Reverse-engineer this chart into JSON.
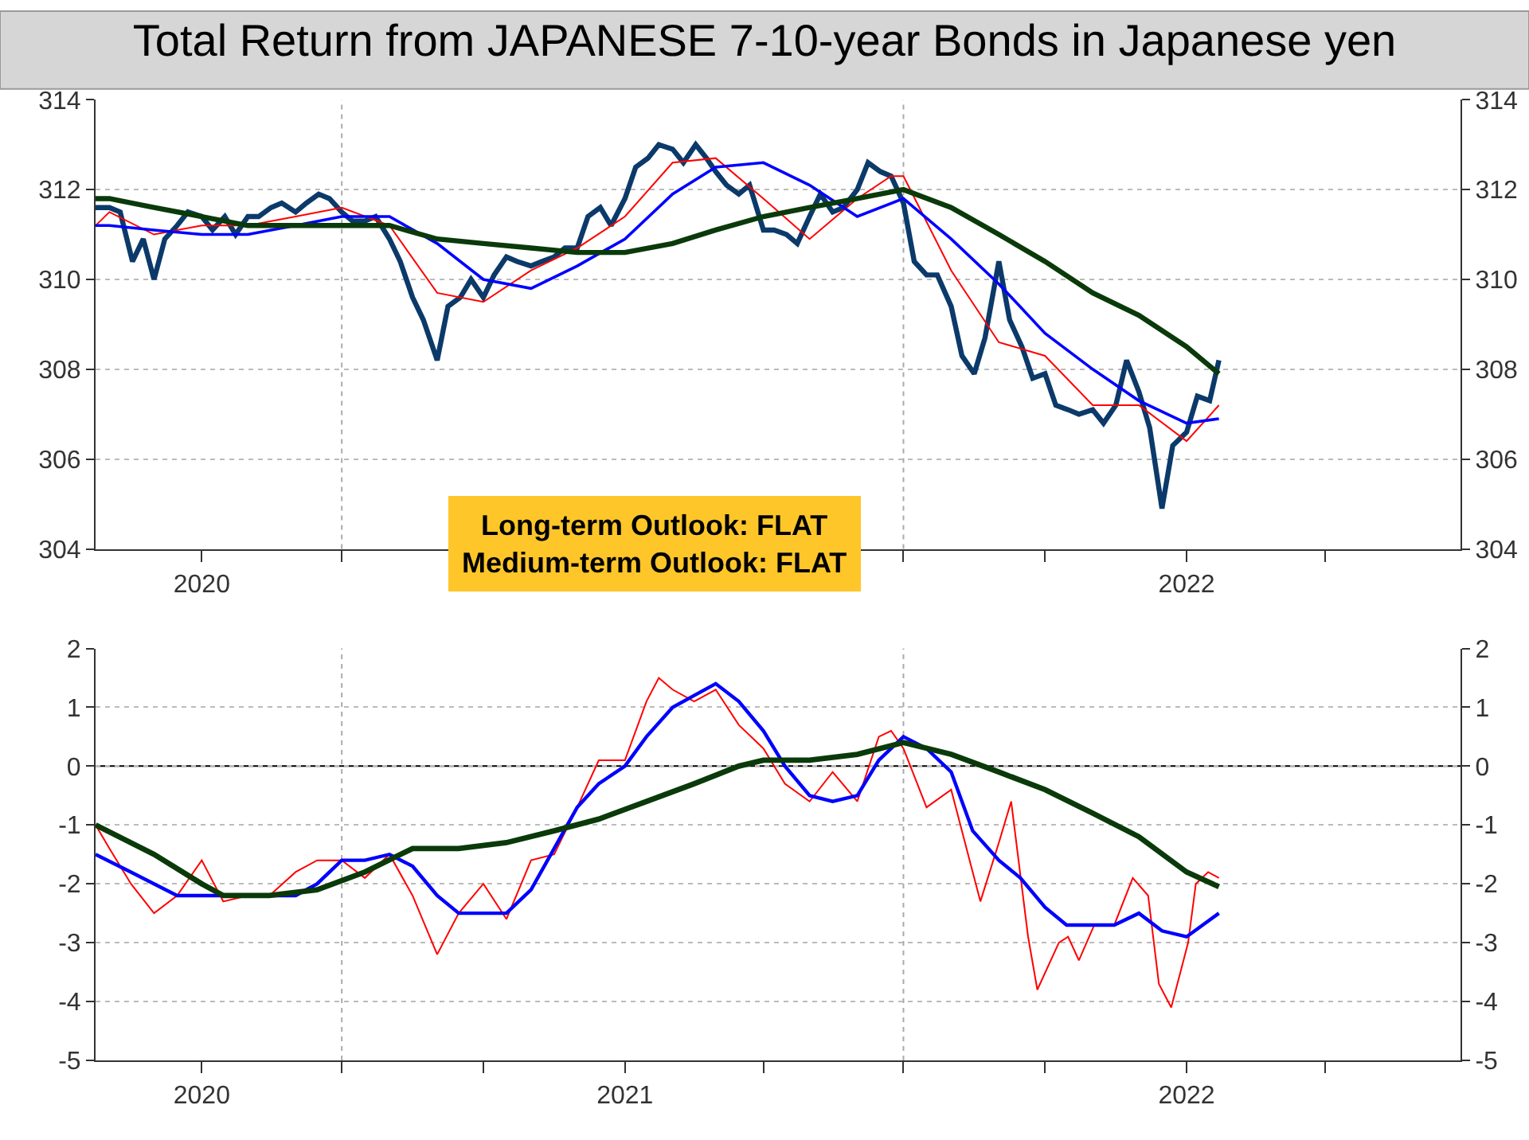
{
  "chart_data": [
    {
      "type": "line",
      "title": "Total Return from JAPANESE 7-10-year Bonds in Japanese yen",
      "annotations": [
        "Long-term Outlook: FLAT\nMedium-term Outlook: FLAT"
      ],
      "xlim": [
        "2020-01-23",
        "2022-06-28"
      ],
      "xticks": [
        {
          "value": "2020-04-01",
          "label": "2020"
        },
        {
          "value": "2020-07-01",
          "label": null
        },
        {
          "value": "2020-10-01",
          "label": null
        },
        {
          "value": "2021-01-01",
          "label": null
        },
        {
          "value": "2021-04-01",
          "label": null
        },
        {
          "value": "2021-07-01",
          "label": null
        },
        {
          "value": "2021-10-01",
          "label": null
        },
        {
          "value": "2022-01-01",
          "label": "2022"
        },
        {
          "value": "2022-04-01",
          "label": null
        }
      ],
      "ylim": [
        304,
        314
      ],
      "yticks": [
        304,
        306,
        308,
        310,
        312,
        314
      ],
      "y2lim": [
        304,
        314
      ],
      "y2ticks": [
        304,
        306,
        308,
        310,
        312,
        314
      ],
      "grid": "y",
      "ref_lines": [
        {
          "axis": "x",
          "value": "2020-07-01",
          "color": "#aaaaaa",
          "line_style": "dotted"
        },
        {
          "axis": "x",
          "value": "2021-07-01",
          "color": "#aaaaaa",
          "line_style": "dotted"
        }
      ],
      "series": [
        {
          "color": "#0b3a6a",
          "x": [
            "2020-01-23",
            "2020-02-01",
            "2020-02-08",
            "2020-02-16",
            "2020-02-23",
            "2020-03-01",
            "2020-03-08",
            "2020-03-16",
            "2020-03-23",
            "2020-04-01",
            "2020-04-08",
            "2020-04-16",
            "2020-04-23",
            "2020-05-01",
            "2020-05-08",
            "2020-05-16",
            "2020-05-23",
            "2020-06-01",
            "2020-06-08",
            "2020-06-16",
            "2020-06-23",
            "2020-07-01",
            "2020-07-08",
            "2020-07-16",
            "2020-07-23",
            "2020-08-01",
            "2020-08-08",
            "2020-08-16",
            "2020-08-23",
            "2020-09-01",
            "2020-09-08",
            "2020-09-16",
            "2020-09-23",
            "2020-10-01",
            "2020-10-08",
            "2020-10-16",
            "2020-10-23",
            "2020-11-01",
            "2020-11-08",
            "2020-11-16",
            "2020-11-23",
            "2020-12-01",
            "2020-12-08",
            "2020-12-16",
            "2020-12-23",
            "2021-01-01",
            "2021-01-08",
            "2021-01-16",
            "2021-01-23",
            "2021-02-01",
            "2021-02-08",
            "2021-02-16",
            "2021-02-23",
            "2021-03-01",
            "2021-03-08",
            "2021-03-16",
            "2021-03-23",
            "2021-04-01",
            "2021-04-08",
            "2021-04-16",
            "2021-04-23",
            "2021-05-01",
            "2021-05-08",
            "2021-05-16",
            "2021-05-23",
            "2021-06-01",
            "2021-06-08",
            "2021-06-16",
            "2021-06-23",
            "2021-07-01",
            "2021-07-08",
            "2021-07-16",
            "2021-07-23",
            "2021-08-01",
            "2021-08-08",
            "2021-08-16",
            "2021-08-23",
            "2021-09-01",
            "2021-09-08",
            "2021-09-16",
            "2021-09-23",
            "2021-10-01",
            "2021-10-08",
            "2021-10-16",
            "2021-10-23",
            "2021-11-01",
            "2021-11-08",
            "2021-11-16",
            "2021-11-23",
            "2021-12-01",
            "2021-12-08",
            "2021-12-16",
            "2021-12-23",
            "2022-01-01",
            "2022-01-08",
            "2022-01-16",
            "2022-01-22"
          ],
          "values": [
            311.6,
            311.6,
            311.5,
            310.4,
            310.9,
            310.0,
            310.9,
            311.2,
            311.5,
            311.4,
            311.1,
            311.4,
            311.0,
            311.4,
            311.4,
            311.6,
            311.7,
            311.5,
            311.7,
            311.9,
            311.8,
            311.5,
            311.3,
            311.3,
            311.4,
            310.9,
            310.4,
            309.6,
            309.1,
            308.2,
            309.4,
            309.6,
            310.0,
            309.6,
            310.1,
            310.5,
            310.4,
            310.3,
            310.4,
            310.5,
            310.7,
            310.7,
            311.4,
            311.6,
            311.2,
            311.8,
            312.5,
            312.7,
            313.0,
            312.9,
            312.6,
            313.0,
            312.7,
            312.4,
            312.1,
            311.9,
            312.1,
            311.1,
            311.1,
            311.0,
            310.8,
            311.4,
            311.9,
            311.5,
            311.6,
            312.0,
            312.6,
            312.4,
            312.3,
            311.7,
            310.4,
            310.1,
            310.1,
            309.4,
            308.3,
            307.9,
            308.7,
            310.4,
            309.1,
            308.5,
            307.8,
            307.9,
            307.2,
            307.1,
            307.0,
            307.1,
            306.8,
            307.2,
            308.2,
            307.5,
            306.7,
            304.9,
            306.3,
            306.6,
            307.4,
            307.3,
            308.2
          ]
        },
        {
          "color": "#ff0000",
          "x": [
            "2020-01-23",
            "2020-02-01",
            "2020-03-01",
            "2020-04-01",
            "2020-05-01",
            "2020-06-01",
            "2020-07-01",
            "2020-08-01",
            "2020-09-01",
            "2020-10-01",
            "2020-11-01",
            "2020-12-01",
            "2021-01-01",
            "2021-02-01",
            "2021-03-01",
            "2021-04-01",
            "2021-05-01",
            "2021-06-01",
            "2021-06-23",
            "2021-07-01",
            "2021-08-01",
            "2021-09-01",
            "2021-10-01",
            "2021-11-01",
            "2021-12-01",
            "2022-01-01",
            "2022-01-22"
          ],
          "values": [
            311.2,
            311.5,
            311.0,
            311.2,
            311.2,
            311.4,
            311.6,
            311.2,
            309.7,
            309.5,
            310.2,
            310.7,
            311.4,
            312.6,
            312.7,
            311.8,
            310.9,
            311.8,
            312.3,
            312.3,
            310.2,
            308.6,
            308.3,
            307.2,
            307.2,
            306.4,
            307.2
          ]
        },
        {
          "color": "#0000ff",
          "x": [
            "2020-01-23",
            "2020-02-01",
            "2020-03-01",
            "2020-04-01",
            "2020-05-01",
            "2020-06-01",
            "2020-07-01",
            "2020-08-01",
            "2020-09-01",
            "2020-10-01",
            "2020-11-01",
            "2020-12-01",
            "2021-01-01",
            "2021-02-01",
            "2021-03-01",
            "2021-04-01",
            "2021-05-01",
            "2021-06-01",
            "2021-07-01",
            "2021-08-01",
            "2021-09-01",
            "2021-10-01",
            "2021-11-01",
            "2021-12-01",
            "2022-01-01",
            "2022-01-22"
          ],
          "values": [
            311.2,
            311.2,
            311.1,
            311.0,
            311.0,
            311.2,
            311.4,
            311.4,
            310.8,
            310.0,
            309.8,
            310.3,
            310.9,
            311.9,
            312.5,
            312.6,
            312.1,
            311.4,
            311.8,
            310.9,
            309.9,
            308.8,
            308.0,
            307.3,
            306.8,
            306.9
          ]
        },
        {
          "color": "#0a3a0a",
          "x": [
            "2020-01-23",
            "2020-02-01",
            "2020-03-01",
            "2020-04-01",
            "2020-05-01",
            "2020-06-01",
            "2020-07-01",
            "2020-08-01",
            "2020-09-01",
            "2020-10-01",
            "2020-11-01",
            "2020-12-01",
            "2021-01-01",
            "2021-02-01",
            "2021-03-01",
            "2021-04-01",
            "2021-05-01",
            "2021-06-01",
            "2021-07-01",
            "2021-08-01",
            "2021-09-01",
            "2021-10-01",
            "2021-11-01",
            "2021-12-01",
            "2022-01-01",
            "2022-01-22"
          ],
          "values": [
            311.8,
            311.8,
            311.6,
            311.4,
            311.2,
            311.2,
            311.2,
            311.2,
            310.9,
            310.8,
            310.7,
            310.6,
            310.6,
            310.8,
            311.1,
            311.4,
            311.6,
            311.8,
            312.0,
            311.6,
            311.0,
            310.4,
            309.7,
            309.2,
            308.5,
            307.9
          ]
        }
      ]
    },
    {
      "type": "line",
      "xlim": [
        "2020-01-23",
        "2022-06-28"
      ],
      "xticks": [
        {
          "value": "2020-04-01",
          "label": "2020"
        },
        {
          "value": "2020-07-01",
          "label": null
        },
        {
          "value": "2020-10-01",
          "label": null
        },
        {
          "value": "2021-01-01",
          "label": "2021"
        },
        {
          "value": "2021-04-01",
          "label": null
        },
        {
          "value": "2021-07-01",
          "label": null
        },
        {
          "value": "2021-10-01",
          "label": null
        },
        {
          "value": "2022-01-01",
          "label": "2022"
        },
        {
          "value": "2022-04-01",
          "label": null
        }
      ],
      "ylim": [
        -5,
        2
      ],
      "yticks": [
        -5,
        -4,
        -3,
        -2,
        -1,
        0,
        1,
        2
      ],
      "y2lim": [
        -5,
        2
      ],
      "y2ticks": [
        -5,
        -4,
        -3,
        -2,
        -1,
        0,
        1,
        2
      ],
      "grid": "y",
      "ref_lines": [
        {
          "axis": "x",
          "value": "2020-07-01",
          "color": "#aaaaaa",
          "line_style": "dotted"
        },
        {
          "axis": "x",
          "value": "2021-07-01",
          "color": "#aaaaaa",
          "line_style": "dotted"
        },
        {
          "axis": "y",
          "value": 0,
          "color": "#000000",
          "line_style": "solid"
        }
      ],
      "series": [
        {
          "color": "#ff0000",
          "x": [
            "2020-01-23",
            "2020-02-01",
            "2020-02-15",
            "2020-03-01",
            "2020-03-16",
            "2020-04-01",
            "2020-04-15",
            "2020-05-01",
            "2020-05-15",
            "2020-06-01",
            "2020-06-15",
            "2020-07-01",
            "2020-07-16",
            "2020-08-01",
            "2020-08-16",
            "2020-09-01",
            "2020-09-15",
            "2020-10-01",
            "2020-10-16",
            "2020-11-01",
            "2020-11-16",
            "2020-12-01",
            "2020-12-15",
            "2021-01-01",
            "2021-01-15",
            "2021-01-23",
            "2021-02-01",
            "2021-02-15",
            "2021-03-01",
            "2021-03-16",
            "2021-04-01",
            "2021-04-15",
            "2021-05-01",
            "2021-05-16",
            "2021-06-01",
            "2021-06-15",
            "2021-06-23",
            "2021-07-01",
            "2021-07-16",
            "2021-08-01",
            "2021-08-15",
            "2021-08-20",
            "2021-09-01",
            "2021-09-09",
            "2021-09-20",
            "2021-09-26",
            "2021-10-10",
            "2021-10-16",
            "2021-10-23",
            "2021-11-02",
            "2021-11-15",
            "2021-11-27",
            "2021-12-07",
            "2021-12-14",
            "2021-12-22",
            "2022-01-02",
            "2022-01-07",
            "2022-01-15",
            "2022-01-22"
          ],
          "values": [
            -1.0,
            -1.4,
            -2.0,
            -2.5,
            -2.2,
            -1.6,
            -2.3,
            -2.2,
            -2.2,
            -1.8,
            -1.6,
            -1.6,
            -1.9,
            -1.5,
            -2.2,
            -3.2,
            -2.5,
            -2.0,
            -2.6,
            -1.6,
            -1.5,
            -0.7,
            0.1,
            0.1,
            1.1,
            1.5,
            1.3,
            1.1,
            1.3,
            0.7,
            0.3,
            -0.3,
            -0.6,
            -0.1,
            -0.6,
            0.5,
            0.6,
            0.3,
            -0.7,
            -0.4,
            -1.8,
            -2.3,
            -1.3,
            -0.6,
            -2.9,
            -3.8,
            -3.0,
            -2.9,
            -3.3,
            -2.7,
            -2.7,
            -1.9,
            -2.2,
            -3.7,
            -4.1,
            -3.0,
            -2.0,
            -1.8,
            -1.9
          ]
        },
        {
          "color": "#0000ff",
          "x": [
            "2020-01-23",
            "2020-02-15",
            "2020-03-01",
            "2020-03-16",
            "2020-04-01",
            "2020-05-01",
            "2020-06-01",
            "2020-06-15",
            "2020-07-01",
            "2020-07-16",
            "2020-08-01",
            "2020-08-16",
            "2020-09-01",
            "2020-09-15",
            "2020-10-01",
            "2020-10-16",
            "2020-11-01",
            "2020-11-16",
            "2020-12-01",
            "2020-12-15",
            "2021-01-01",
            "2021-01-15",
            "2021-02-01",
            "2021-02-15",
            "2021-03-01",
            "2021-03-16",
            "2021-04-01",
            "2021-04-15",
            "2021-05-01",
            "2021-05-16",
            "2021-06-01",
            "2021-06-15",
            "2021-07-01",
            "2021-07-16",
            "2021-08-01",
            "2021-08-15",
            "2021-09-01",
            "2021-09-15",
            "2021-10-01",
            "2021-10-15",
            "2021-11-01",
            "2021-11-15",
            "2021-12-01",
            "2021-12-16",
            "2022-01-01",
            "2022-01-22"
          ],
          "values": [
            -1.5,
            -1.8,
            -2.0,
            -2.2,
            -2.2,
            -2.2,
            -2.2,
            -2.0,
            -1.6,
            -1.6,
            -1.5,
            -1.7,
            -2.2,
            -2.5,
            -2.5,
            -2.5,
            -2.1,
            -1.4,
            -0.7,
            -0.3,
            0.0,
            0.5,
            1.0,
            1.2,
            1.4,
            1.1,
            0.6,
            0.0,
            -0.5,
            -0.6,
            -0.5,
            0.1,
            0.5,
            0.3,
            -0.1,
            -1.1,
            -1.6,
            -1.9,
            -2.4,
            -2.7,
            -2.7,
            -2.7,
            -2.5,
            -2.8,
            -2.9,
            -2.5
          ]
        },
        {
          "color": "#0a3a0a",
          "x": [
            "2020-01-23",
            "2020-03-01",
            "2020-04-01",
            "2020-04-15",
            "2020-05-15",
            "2020-06-15",
            "2020-07-16",
            "2020-08-16",
            "2020-09-15",
            "2020-10-16",
            "2020-11-16",
            "2020-12-15",
            "2021-01-15",
            "2021-02-15",
            "2021-03-16",
            "2021-04-01",
            "2021-05-01",
            "2021-06-01",
            "2021-07-01",
            "2021-08-01",
            "2021-09-01",
            "2021-10-01",
            "2021-11-01",
            "2021-12-01",
            "2022-01-01",
            "2022-01-22"
          ],
          "values": [
            -1.0,
            -1.5,
            -2.0,
            -2.2,
            -2.2,
            -2.1,
            -1.8,
            -1.4,
            -1.4,
            -1.3,
            -1.1,
            -0.9,
            -0.6,
            -0.3,
            0.0,
            0.1,
            0.1,
            0.2,
            0.4,
            0.2,
            -0.1,
            -0.4,
            -0.8,
            -1.2,
            -1.8,
            -2.05
          ]
        }
      ]
    }
  ]
}
